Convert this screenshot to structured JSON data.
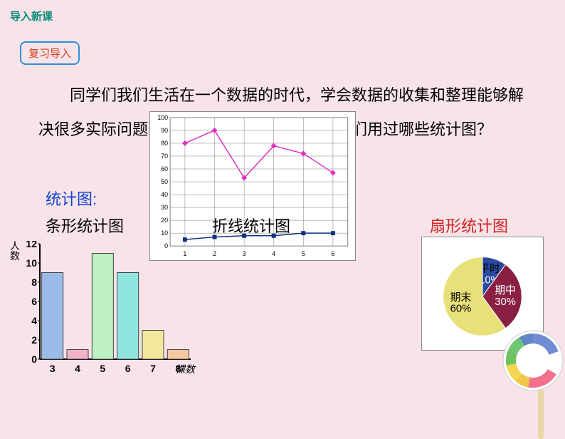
{
  "header": "导入新课",
  "badge": "复习导入",
  "paragraph": "同学们我们生活在一个数据的时代，学会数据的收集和整理能够解决很多实际问题，回想一下在以前的学习中我们用过哪些统计图？",
  "stat_label": "统计图:",
  "labels": {
    "bar": "条形统计图",
    "line": "折线统计图",
    "pie": "扇形统计图"
  },
  "bar_chart": {
    "type": "bar",
    "ylabel": "人数",
    "xlabel": "棵数",
    "categories": [
      "3",
      "4",
      "5",
      "6",
      "7",
      "8"
    ],
    "values": [
      9,
      1,
      11,
      9,
      3,
      1
    ],
    "bar_colors": [
      "#9bbce8",
      "#f4b3c8",
      "#bdf0c3",
      "#8fe6e0",
      "#f2e79a",
      "#f8c9a0"
    ],
    "ylim": [
      0,
      12
    ],
    "ytick_step": 2,
    "axis_color": "#000",
    "border_color": "#444",
    "label_fontsize": 14
  },
  "line_chart": {
    "type": "line",
    "x": [
      1,
      2,
      3,
      4,
      5,
      6
    ],
    "series": [
      {
        "color": "#e030c0",
        "values": [
          80,
          90,
          53,
          78,
          72,
          57
        ],
        "marker": "diamond"
      },
      {
        "color": "#103080",
        "values": [
          5,
          7,
          8,
          8,
          10,
          10
        ],
        "marker": "square"
      }
    ],
    "ylim": [
      0,
      100
    ],
    "ytick_step": 10,
    "grid_color": "#808080",
    "background": "#ffffff",
    "label_fontsize": 9
  },
  "pie_chart": {
    "type": "pie",
    "slices": [
      {
        "label": "平时",
        "sub": "10%",
        "value": 10,
        "color": "#2a4aa0",
        "label_color": "#000",
        "sub_color": "#fff"
      },
      {
        "label": "期中",
        "sub": "30%",
        "value": 30,
        "color": "#8a1f44",
        "label_color": "#fff",
        "sub_color": "#fff"
      },
      {
        "label": "期末",
        "sub": "60%",
        "value": 60,
        "color": "#e8e078",
        "label_color": "#000",
        "sub_color": "#000"
      }
    ],
    "background": "#ffffff",
    "border_color": "#888888",
    "label_fontsize": 15
  },
  "lollipop": {
    "stick_color": "#e8d8a8",
    "swirl_colors": [
      "#ffffff",
      "#f06080",
      "#f0d040",
      "#60c060",
      "#6080d0"
    ]
  }
}
